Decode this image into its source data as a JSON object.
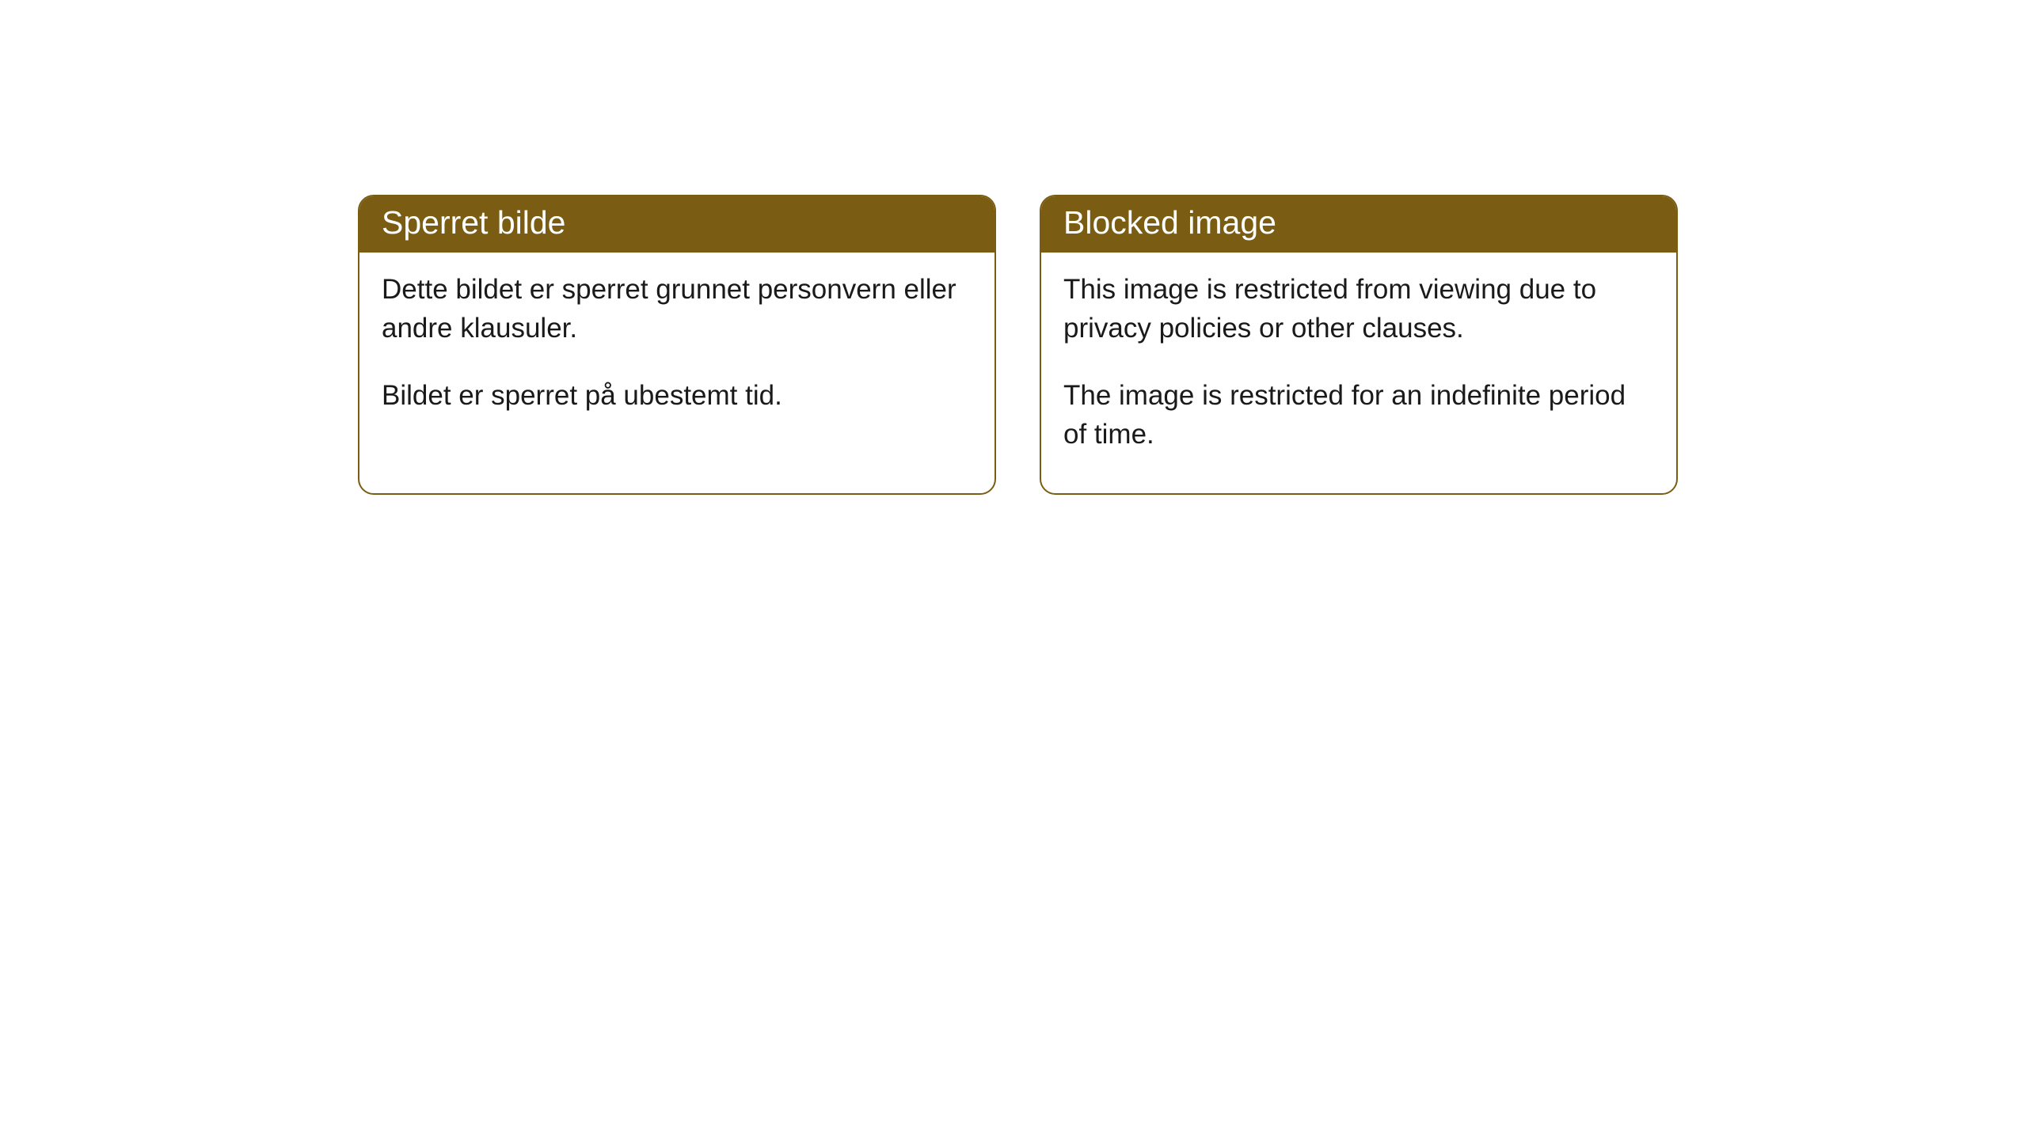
{
  "cards": [
    {
      "title": "Sperret bilde",
      "paragraph1": "Dette bildet er sperret grunnet personvern eller andre klausuler.",
      "paragraph2": "Bildet er sperret på ubestemt tid."
    },
    {
      "title": "Blocked image",
      "paragraph1": "This image is restricted from viewing due to privacy policies or other clauses.",
      "paragraph2": "The image is restricted for an indefinite period of time."
    }
  ],
  "styling": {
    "header_background": "#7a5d12",
    "header_text_color": "#ffffff",
    "border_color": "#7a5d12",
    "body_background": "#ffffff",
    "body_text_color": "#1a1a1a",
    "border_radius": 20,
    "title_fontsize": 41,
    "body_fontsize": 35
  }
}
